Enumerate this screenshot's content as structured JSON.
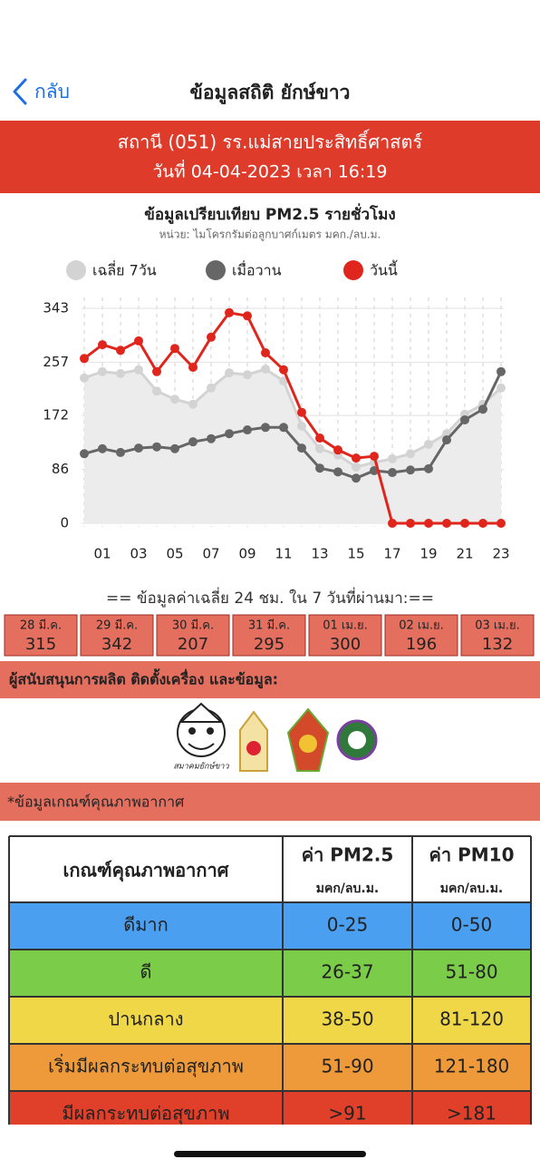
{
  "nav": {
    "back": "กลับ",
    "title": "ข้อมูลสถิติ ยักษ์ขาว"
  },
  "station": {
    "name": "สถานี (051) รร.แม่สายประสิทธิ์ศาสตร์",
    "datetime": "วันที่ 04-04-2023 เวลา 16:19"
  },
  "chart_data": {
    "type": "line",
    "title": "ข้อมูลเปรียบเทียบ PM2.5 รายชั่วโมง",
    "subtitle": "หน่วย: ไมโครกรัมต่อลูกบาศก์เมตร มคก./ลบ.ม.",
    "x": [
      0,
      1,
      2,
      3,
      4,
      5,
      6,
      7,
      8,
      9,
      10,
      11,
      12,
      13,
      14,
      15,
      16,
      17,
      18,
      19,
      20,
      21,
      22,
      23
    ],
    "xlim": [
      0,
      23
    ],
    "xticks": [
      {
        "value": 1,
        "label": "01"
      },
      {
        "value": 3,
        "label": "03"
      },
      {
        "value": 5,
        "label": "05"
      },
      {
        "value": 7,
        "label": "07"
      },
      {
        "value": 9,
        "label": "09"
      },
      {
        "value": 11,
        "label": "11"
      },
      {
        "value": 13,
        "label": "13"
      },
      {
        "value": 15,
        "label": "15"
      },
      {
        "value": 17,
        "label": "17"
      },
      {
        "value": 19,
        "label": "19"
      },
      {
        "value": 21,
        "label": "21"
      },
      {
        "value": 23,
        "label": "23"
      }
    ],
    "ylim": [
      0,
      343
    ],
    "yticks": [
      0,
      86,
      172,
      257,
      343
    ],
    "grid": true,
    "series": [
      {
        "name": "เฉลี่ย 7วัน",
        "color": "#d3d3d3",
        "values": [
          232,
          242,
          239,
          245,
          211,
          198,
          190,
          216,
          240,
          237,
          246,
          227,
          155,
          119,
          109,
          90,
          97,
          103,
          111,
          126,
          143,
          174,
          190,
          216
        ]
      },
      {
        "name": "เมื่อวาน",
        "color": "#666666",
        "values": [
          111,
          119,
          113,
          120,
          122,
          119,
          130,
          135,
          143,
          149,
          153,
          153,
          120,
          88,
          82,
          72,
          84,
          81,
          85,
          87,
          133,
          165,
          182,
          242
        ]
      },
      {
        "name": "วันนี้",
        "color": "#e0261c",
        "values": [
          263,
          285,
          276,
          291,
          242,
          279,
          249,
          297,
          336,
          331,
          272,
          245,
          177,
          136,
          117,
          104,
          107,
          0,
          0,
          0,
          0,
          0,
          0,
          0
        ]
      }
    ]
  },
  "averages": {
    "title": "== ข้อมูลค่าเฉลี่ย 24 ชม. ใน 7 วันที่ผ่านมา:==",
    "items": [
      {
        "date": "28 มี.ค.",
        "value": 315
      },
      {
        "date": "29 มี.ค.",
        "value": 342
      },
      {
        "date": "30 มี.ค.",
        "value": 207
      },
      {
        "date": "31 มี.ค.",
        "value": 295
      },
      {
        "date": "01 เม.ย.",
        "value": 300
      },
      {
        "date": "02 เม.ย.",
        "value": 196
      },
      {
        "date": "03 เม.ย.",
        "value": 132
      }
    ]
  },
  "sponsors": {
    "title": "ผู้สนับสนุนการผลิต ติดตั้งเครื่อง และข้อมูล:",
    "logo_text": "สมาคมยักษ์ขาว"
  },
  "criteria": {
    "title": "*ข้อมูลเกณฑ์คุณภาพอากาศ",
    "header": [
      {
        "label": "เกณฑ์คุณภาพอากาศ"
      },
      {
        "label": "ค่า PM2.5",
        "unit": "มคก/ลบ.ม."
      },
      {
        "label": "ค่า PM10",
        "unit": "มคก/ลบ.ม."
      }
    ],
    "rows": [
      [
        "ดีมาก",
        "0-25",
        "0-50"
      ],
      [
        "ดี",
        "26-37",
        "51-80"
      ],
      [
        "ปานกลาง",
        "38-50",
        "81-120"
      ],
      [
        "เริ่มมีผลกระทบต่อสุขภาพ",
        "51-90",
        "121-180"
      ],
      [
        "มีผลกระทบต่อสุขภาพ",
        ">91",
        ">181"
      ]
    ]
  }
}
